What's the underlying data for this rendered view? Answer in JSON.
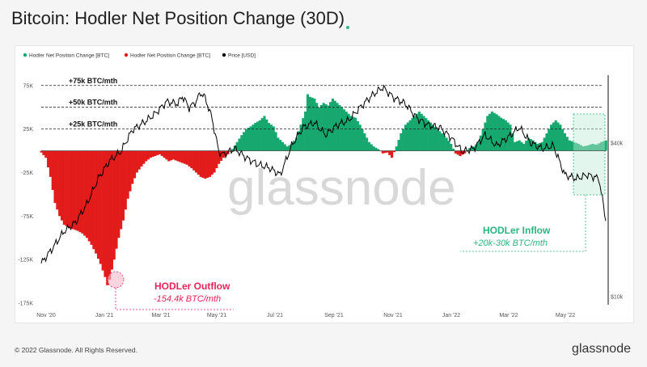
{
  "header": {
    "title": "Bitcoin: Hodler Net Position Change (30D)"
  },
  "footer": {
    "copyright": "© 2022 Glassnode. All Rights Reserved.",
    "brand": "glassnode"
  },
  "watermark": "glassnode",
  "colors": {
    "positive": "#16a86e",
    "negative": "#e21b1b",
    "price": "#000000",
    "annotation_red": "#e8245b",
    "annotation_green": "#2bb57f"
  },
  "annotations": {
    "outflow_title": "HODLer Outflow",
    "outflow_value": "-154.4k  BTC/mth",
    "inflow_title": "HODLer Inflow",
    "inflow_value": "+20k-30k BTC/mth"
  },
  "chart_data": {
    "type": "bar",
    "legend": [
      "Hodler Net Position Change [BTC]",
      "Hodler Net Position Change [BTC]",
      "Price [USD]"
    ],
    "legend_colors": [
      "#16a86e",
      "#e21b1b",
      "#000000"
    ],
    "legend_position": "top-left",
    "x_ticks": [
      "Nov '20",
      "Jan '21",
      "Mar '21",
      "May '21",
      "Jul '21",
      "Sep '21",
      "Nov '21",
      "Jan '22",
      "Mar '22",
      "May '22"
    ],
    "y_ticks_left": [
      "75K",
      "25K",
      "-25K",
      "-75K",
      "-125K",
      "-175K"
    ],
    "y_ticks_right": [
      "$40k",
      "$10k"
    ],
    "ylim": [
      -175000,
      85000
    ],
    "grid": false,
    "reference_lines": [
      {
        "label": "+75k BTC/mth",
        "value": 75000
      },
      {
        "label": "+50k BTC/mth",
        "value": 50000
      },
      {
        "label": "+25k BTC/mth",
        "value": 25000
      }
    ],
    "net_position": [
      [
        0,
        -2
      ],
      [
        2,
        -8
      ],
      [
        4,
        -30
      ],
      [
        6,
        -60
      ],
      [
        8,
        -75
      ],
      [
        10,
        -85
      ],
      [
        12,
        -88
      ],
      [
        14,
        -90
      ],
      [
        16,
        -92
      ],
      [
        18,
        -95
      ],
      [
        20,
        -100
      ],
      [
        22,
        -108
      ],
      [
        24,
        -118
      ],
      [
        26,
        -130
      ],
      [
        28,
        -145
      ],
      [
        29,
        -154.4
      ],
      [
        30,
        -148
      ],
      [
        32,
        -125
      ],
      [
        34,
        -100
      ],
      [
        36,
        -80
      ],
      [
        38,
        -55
      ],
      [
        40,
        -38
      ],
      [
        42,
        -25
      ],
      [
        44,
        -18
      ],
      [
        46,
        -12
      ],
      [
        48,
        -8
      ],
      [
        50,
        -6
      ],
      [
        52,
        -4
      ],
      [
        54,
        -8
      ],
      [
        56,
        -12
      ],
      [
        58,
        -10
      ],
      [
        60,
        -12
      ],
      [
        62,
        -14
      ],
      [
        64,
        -16
      ],
      [
        66,
        -20
      ],
      [
        68,
        -25
      ],
      [
        70,
        -30
      ],
      [
        72,
        -32
      ],
      [
        74,
        -30
      ],
      [
        76,
        -25
      ],
      [
        78,
        -15
      ],
      [
        80,
        -8
      ],
      [
        82,
        -4
      ],
      [
        84,
        2
      ],
      [
        86,
        10
      ],
      [
        88,
        18
      ],
      [
        90,
        25
      ],
      [
        92,
        28
      ],
      [
        94,
        32
      ],
      [
        96,
        35
      ],
      [
        98,
        40
      ],
      [
        100,
        32
      ],
      [
        102,
        28
      ],
      [
        104,
        15
      ],
      [
        106,
        10
      ],
      [
        108,
        5
      ],
      [
        110,
        8
      ],
      [
        112,
        15
      ],
      [
        114,
        30
      ],
      [
        116,
        45
      ],
      [
        117,
        65
      ],
      [
        118,
        62
      ],
      [
        120,
        60
      ],
      [
        122,
        50
      ],
      [
        124,
        55
      ],
      [
        126,
        52
      ],
      [
        128,
        60
      ],
      [
        130,
        55
      ],
      [
        132,
        50
      ],
      [
        134,
        45
      ],
      [
        136,
        40
      ],
      [
        138,
        38
      ],
      [
        140,
        30
      ],
      [
        142,
        20
      ],
      [
        144,
        10
      ],
      [
        146,
        5
      ],
      [
        148,
        2
      ],
      [
        150,
        -3
      ],
      [
        152,
        -2
      ],
      [
        154,
        -8
      ],
      [
        156,
        5
      ],
      [
        158,
        20
      ],
      [
        160,
        30
      ],
      [
        162,
        35
      ],
      [
        164,
        40
      ],
      [
        166,
        45
      ],
      [
        168,
        40
      ],
      [
        170,
        35
      ],
      [
        172,
        30
      ],
      [
        174,
        25
      ],
      [
        176,
        20
      ],
      [
        178,
        15
      ],
      [
        180,
        8
      ],
      [
        182,
        -3
      ],
      [
        184,
        -6
      ],
      [
        186,
        -3
      ],
      [
        188,
        3
      ],
      [
        190,
        5
      ],
      [
        192,
        10
      ],
      [
        194,
        25
      ],
      [
        196,
        40
      ],
      [
        198,
        45
      ],
      [
        200,
        42
      ],
      [
        202,
        38
      ],
      [
        204,
        35
      ],
      [
        206,
        30
      ],
      [
        208,
        10
      ],
      [
        210,
        12
      ],
      [
        212,
        8
      ],
      [
        214,
        15
      ],
      [
        216,
        12
      ],
      [
        218,
        8
      ],
      [
        220,
        10
      ],
      [
        222,
        20
      ],
      [
        224,
        30
      ],
      [
        226,
        35
      ],
      [
        228,
        30
      ],
      [
        230,
        20
      ],
      [
        232,
        12
      ],
      [
        234,
        10
      ],
      [
        236,
        8
      ],
      [
        238,
        5
      ],
      [
        240,
        6
      ],
      [
        242,
        8
      ],
      [
        244,
        7
      ],
      [
        246,
        10
      ],
      [
        248,
        12
      ]
    ],
    "price_usd": [
      [
        0,
        13500
      ],
      [
        5,
        15500
      ],
      [
        10,
        18000
      ],
      [
        15,
        19500
      ],
      [
        20,
        23000
      ],
      [
        25,
        29000
      ],
      [
        30,
        34000
      ],
      [
        35,
        37000
      ],
      [
        40,
        45000
      ],
      [
        45,
        48000
      ],
      [
        50,
        52000
      ],
      [
        55,
        58000
      ],
      [
        60,
        57000
      ],
      [
        62,
        61000
      ],
      [
        65,
        55000
      ],
      [
        68,
        58000
      ],
      [
        70,
        63000
      ],
      [
        72,
        60000
      ],
      [
        75,
        50000
      ],
      [
        78,
        37000
      ],
      [
        80,
        36000
      ],
      [
        85,
        38000
      ],
      [
        90,
        35000
      ],
      [
        95,
        33000
      ],
      [
        100,
        32000
      ],
      [
        105,
        30000
      ],
      [
        110,
        39000
      ],
      [
        115,
        46000
      ],
      [
        120,
        48000
      ],
      [
        125,
        43000
      ],
      [
        130,
        47000
      ],
      [
        135,
        49000
      ],
      [
        140,
        55000
      ],
      [
        145,
        61000
      ],
      [
        148,
        64000
      ],
      [
        150,
        66000
      ],
      [
        155,
        60000
      ],
      [
        160,
        57000
      ],
      [
        165,
        50000
      ],
      [
        170,
        47000
      ],
      [
        175,
        46000
      ],
      [
        180,
        42000
      ],
      [
        185,
        37000
      ],
      [
        190,
        38000
      ],
      [
        195,
        43000
      ],
      [
        200,
        39000
      ],
      [
        205,
        42000
      ],
      [
        210,
        46000
      ],
      [
        215,
        40000
      ],
      [
        220,
        38000
      ],
      [
        225,
        39000
      ],
      [
        230,
        30000
      ],
      [
        235,
        29000
      ],
      [
        240,
        30000
      ],
      [
        245,
        29000
      ],
      [
        248,
        20000
      ]
    ]
  }
}
